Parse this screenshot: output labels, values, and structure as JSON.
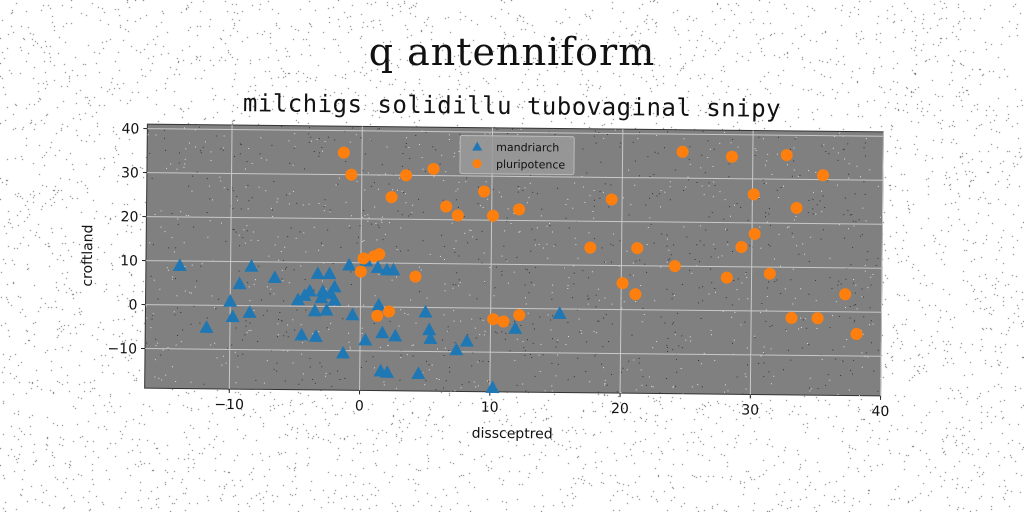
{
  "header": {
    "suptitle": "q antenniform",
    "title": "milchigs solidillu tubovaginal snipy"
  },
  "chart_data": {
    "type": "scatter",
    "title": "milchigs solidillu tubovaginal snipy",
    "xlabel": "dissceptred",
    "ylabel": "croftland",
    "xlim": [
      -16.5,
      40
    ],
    "ylim": [
      -19,
      41
    ],
    "xticks": [
      -10,
      0,
      10,
      20,
      30,
      40
    ],
    "yticks": [
      -10,
      0,
      10,
      20,
      30,
      40
    ],
    "xtick_labels": [
      "−10",
      "0",
      "10",
      "20",
      "30",
      "40"
    ],
    "ytick_labels": [
      "−10",
      "0",
      "10",
      "20",
      "30",
      "40"
    ],
    "grid": true,
    "legend_position": "top-center",
    "background_color": "#808080",
    "series": [
      {
        "name": "mandriarch",
        "marker": "triangle",
        "color": "#1f77b4",
        "points": [
          [
            -13.9,
            9
          ],
          [
            -11.8,
            -5
          ],
          [
            -10,
            1
          ],
          [
            -9.8,
            -2.5
          ],
          [
            -9.3,
            5
          ],
          [
            -8.5,
            -1.5
          ],
          [
            -8.4,
            9
          ],
          [
            -6.6,
            6.5
          ],
          [
            -4.8,
            1.5
          ],
          [
            -4.5,
            -6.5
          ],
          [
            -4.3,
            2.5
          ],
          [
            -3.9,
            3.5
          ],
          [
            -3.5,
            -1
          ],
          [
            -3.4,
            -6.8
          ],
          [
            -3.3,
            7.5
          ],
          [
            -3,
            2
          ],
          [
            -2.9,
            3.5
          ],
          [
            -2.6,
            -0.8
          ],
          [
            -2.4,
            7.5
          ],
          [
            -2.3,
            3
          ],
          [
            -2,
            1.5
          ],
          [
            -2,
            4.5
          ],
          [
            -1.3,
            -10.5
          ],
          [
            -0.9,
            9.5
          ],
          [
            -0.6,
            -1.8
          ],
          [
            0.4,
            -7.5
          ],
          [
            0.4,
            10.5
          ],
          [
            1.3,
            9
          ],
          [
            1.4,
            0.5
          ],
          [
            1.6,
            -14.5
          ],
          [
            1.7,
            -5.8
          ],
          [
            2,
            8.5
          ],
          [
            2.1,
            -14.8
          ],
          [
            2.5,
            8.5
          ],
          [
            2.7,
            -6.5
          ],
          [
            4.5,
            -15
          ],
          [
            5,
            -1
          ],
          [
            5.3,
            -5
          ],
          [
            5.4,
            -7
          ],
          [
            7.4,
            -9.5
          ],
          [
            8.2,
            -7.5
          ],
          [
            10.2,
            -18
          ],
          [
            11.9,
            -4.5
          ],
          [
            15.3,
            -1
          ]
        ]
      },
      {
        "name": "pluripotence",
        "marker": "circle",
        "color": "#ff7f0e",
        "points": [
          [
            -1.4,
            35
          ],
          [
            -0.8,
            30
          ],
          [
            0,
            8
          ],
          [
            0.2,
            11
          ],
          [
            1,
            11.5
          ],
          [
            1.3,
            -2
          ],
          [
            1.4,
            12
          ],
          [
            2.3,
            25
          ],
          [
            2.2,
            -1
          ],
          [
            3.4,
            30
          ],
          [
            4.2,
            7
          ],
          [
            5.5,
            31.5
          ],
          [
            6.5,
            23
          ],
          [
            7.4,
            21
          ],
          [
            9.4,
            26.5
          ],
          [
            10.1,
            21
          ],
          [
            10.2,
            -2.5
          ],
          [
            11,
            -3
          ],
          [
            12.1,
            22.5
          ],
          [
            12.2,
            -1.5
          ],
          [
            17.6,
            14
          ],
          [
            19.2,
            25
          ],
          [
            20.1,
            6
          ],
          [
            21.1,
            3.5
          ],
          [
            21.2,
            14
          ],
          [
            24.1,
            10
          ],
          [
            24.6,
            36
          ],
          [
            28.1,
            7.5
          ],
          [
            28.4,
            35
          ],
          [
            29.2,
            14.5
          ],
          [
            30.1,
            26.5
          ],
          [
            30.2,
            17.5
          ],
          [
            31.4,
            8.5
          ],
          [
            32.6,
            35.5
          ],
          [
            33.1,
            -1.5
          ],
          [
            33.4,
            23.5
          ],
          [
            35.1,
            -1.5
          ],
          [
            35.4,
            31
          ],
          [
            37.2,
            4
          ],
          [
            38.1,
            -5
          ]
        ]
      }
    ]
  }
}
